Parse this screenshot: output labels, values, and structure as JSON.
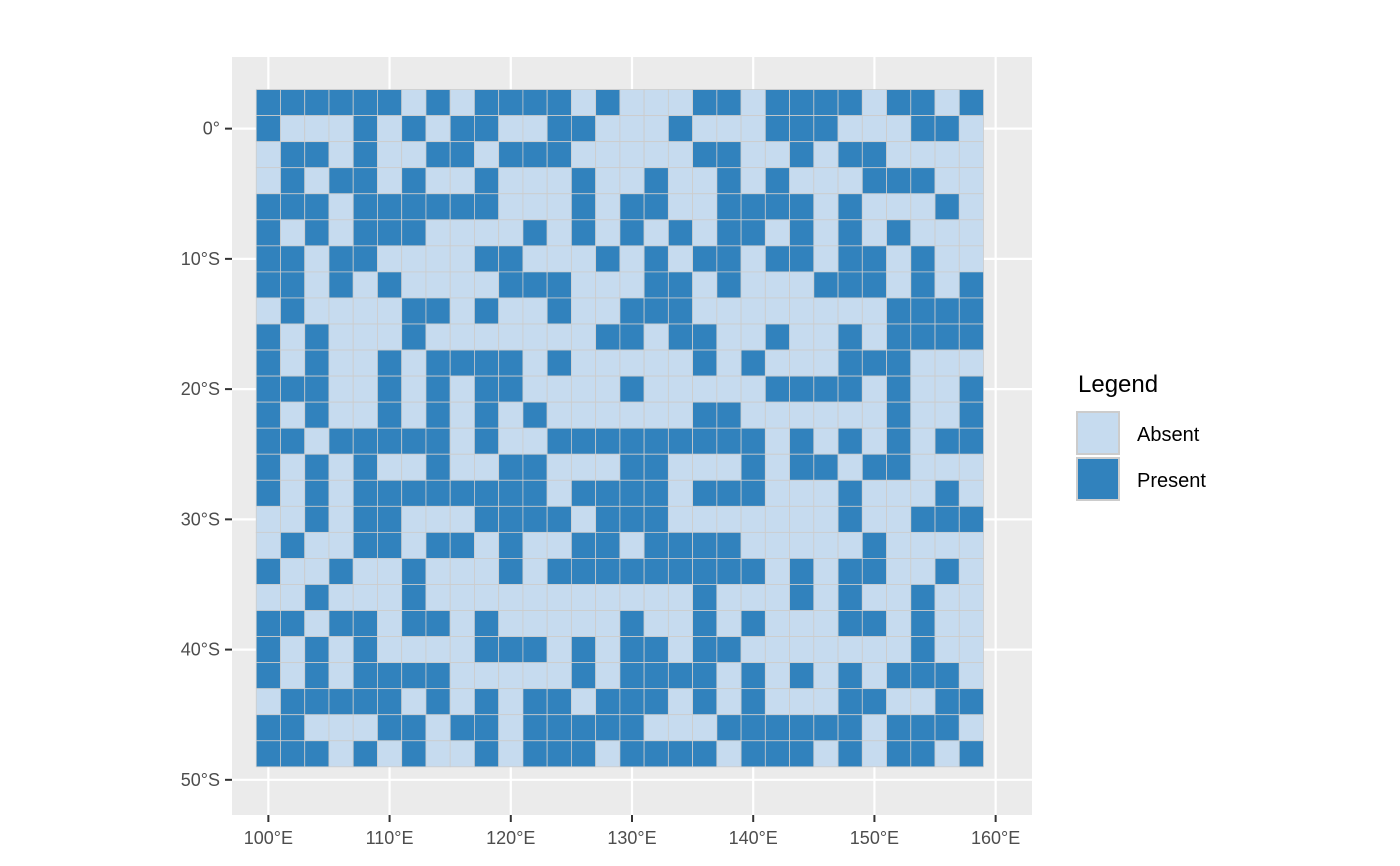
{
  "chart_data": {
    "type": "heatmap",
    "title": "",
    "xlabel": "",
    "ylabel": "",
    "x_ticks": [
      {
        "value": 100,
        "label": "100°E"
      },
      {
        "value": 110,
        "label": "110°E"
      },
      {
        "value": 120,
        "label": "120°E"
      },
      {
        "value": 130,
        "label": "130°E"
      },
      {
        "value": 140,
        "label": "140°E"
      },
      {
        "value": 150,
        "label": "150°E"
      },
      {
        "value": 160,
        "label": "160°E"
      }
    ],
    "y_ticks": [
      {
        "value": 0,
        "label": "0°"
      },
      {
        "value": -10,
        "label": "10°S"
      },
      {
        "value": -20,
        "label": "20°S"
      },
      {
        "value": -30,
        "label": "30°S"
      },
      {
        "value": -40,
        "label": "40°S"
      },
      {
        "value": -50,
        "label": "50°S"
      }
    ],
    "xlim": [
      97,
      163
    ],
    "ylim": [
      -52.7,
      5.5
    ],
    "grid": true,
    "cell_columns": [
      100,
      102,
      104,
      106,
      108,
      110,
      112,
      114,
      116,
      118,
      120,
      122,
      124,
      126,
      128,
      130,
      132,
      134,
      136,
      138,
      140,
      142,
      144,
      146,
      148,
      150,
      152,
      154,
      156,
      158
    ],
    "cell_rows": [
      2,
      0,
      -2,
      -4,
      -6,
      -8,
      -10,
      -12,
      -14,
      -16,
      -18,
      -20,
      -22,
      -24,
      -26,
      -28,
      -30,
      -32,
      -34,
      -36,
      -38,
      -40,
      -42,
      -44,
      -46,
      -48
    ],
    "cell_size": 2,
    "values": [
      "111111010111101000110111101101",
      "100010101100110001000111000110",
      "011010011011100000110010110000",
      "010110100100010010010100011100",
      "111011111100010110011110100010",
      "101011100001010101011010101000",
      "110110000110001010110110110100",
      "110101000011100011010001110101",
      "010000110100100111000000001111",
      "101000100000001101100100101111",
      "101001011110100000101000111000",
      "111001010110000100000111101001",
      "101001010101000000110000001001",
      "110111110100111111111010101011",
      "101010010011000110001011011000",
      "101011111111011110111000100010",
      "001011000111101110000000100111",
      "010011011010011011110000010000",
      "100100100010111111111010110010",
      "001000100000000000100010100100",
      "110110110100000100101000110100",
      "101010000111010110110000000100",
      "101011110000010111101010101110",
      "011111010101101110101000110011",
      "110001101101111100011111101110",
      "111010100101110111101110101101"
    ],
    "legend": {
      "title": "Legend",
      "placement": "right",
      "entries": [
        {
          "label": "Absent",
          "value": "0",
          "color": "#c6dbef"
        },
        {
          "label": "Present",
          "value": "1",
          "color": "#3182bd"
        }
      ]
    },
    "panel_color": "#ebebeb",
    "grid_color": "#ffffff",
    "cell_border_color": "#cccccc"
  }
}
